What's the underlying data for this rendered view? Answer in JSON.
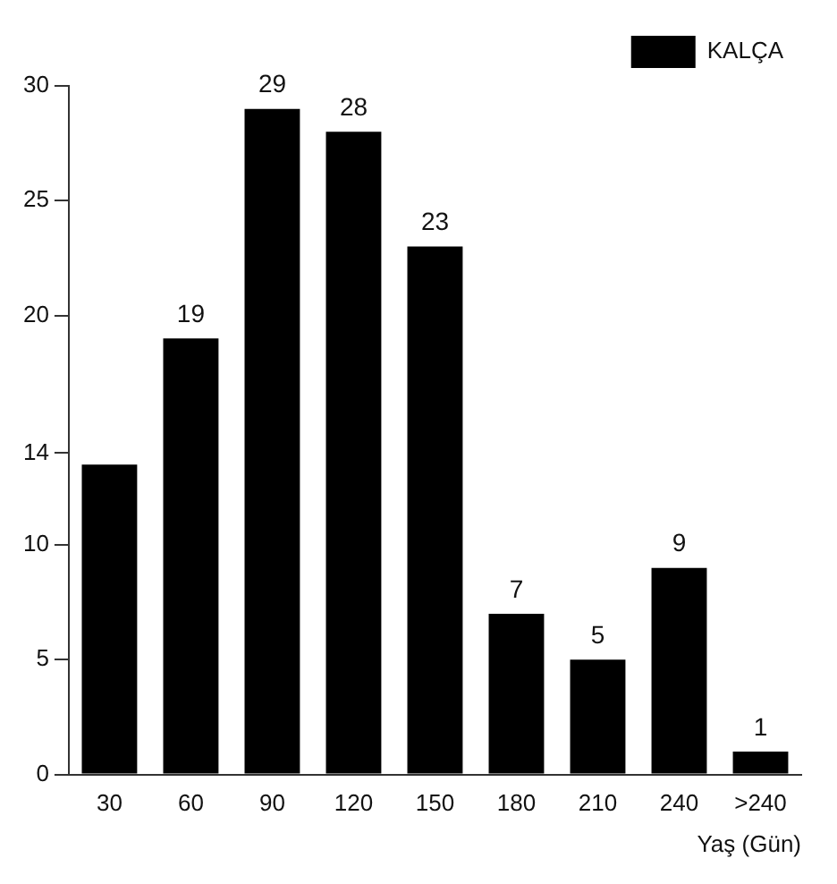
{
  "chart_data": {
    "type": "bar",
    "xlabel": "Yaş (Gün)",
    "categories": [
      "30",
      "60",
      "90",
      "120",
      "150",
      "180",
      "210",
      "240",
      ">240"
    ],
    "series": [
      {
        "name": "KALÇA",
        "color": "#000000",
        "values": [
          13.5,
          19,
          29,
          28,
          23,
          7,
          5,
          9,
          1
        ],
        "value_labels": [
          null,
          "19",
          "29",
          "28",
          "23",
          "7",
          "5",
          "9",
          "1"
        ]
      }
    ],
    "ylim": [
      0,
      30
    ],
    "yticks": [
      0,
      5,
      10,
      14,
      20,
      25,
      30
    ],
    "grid": false,
    "legend": "top right"
  }
}
